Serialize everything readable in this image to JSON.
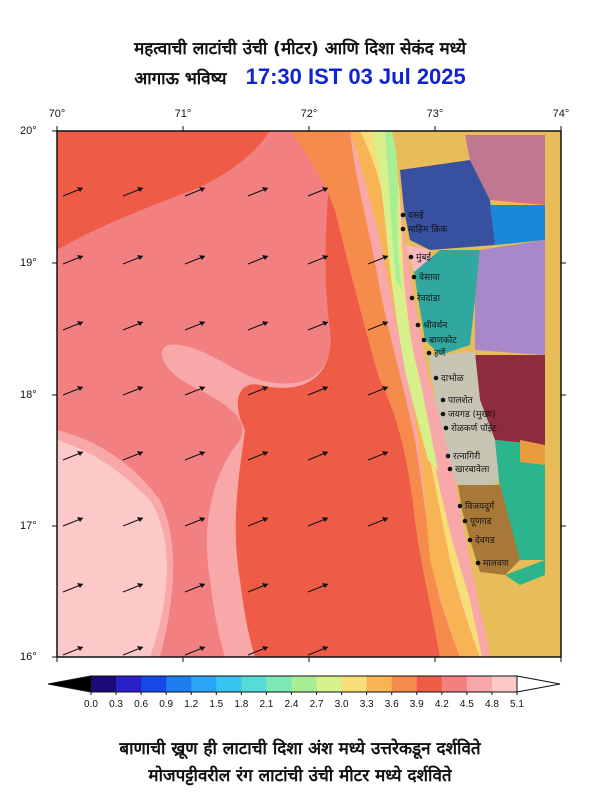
{
  "title": {
    "line1": "महत्वाची लाटांची उंची (मीटर) आणि दिशा सेकंद मध्ये",
    "line2_prefix": "आगाऊ भविष्य",
    "timestamp": "17:30 IST 03 Jul 2025"
  },
  "axes": {
    "lon_labels": [
      "70°",
      "71°",
      "72°",
      "73°",
      "74°"
    ],
    "lat_labels": [
      "20°",
      "19°",
      "18°",
      "17°",
      "16°"
    ]
  },
  "colorbar": {
    "ticks": [
      "0.0",
      "0.3",
      "0.6",
      "0.9",
      "1.2",
      "1.5",
      "1.8",
      "2.1",
      "2.4",
      "2.7",
      "3.0",
      "3.3",
      "3.6",
      "3.9",
      "4.2",
      "4.5",
      "4.8",
      "5.1"
    ],
    "colors": [
      "#1a0a7a",
      "#2a20c8",
      "#1848e8",
      "#1c7cf0",
      "#2aa4f4",
      "#36c4f0",
      "#56dcd8",
      "#7ce8b4",
      "#a8ee94",
      "#d8f08c",
      "#f6de78",
      "#f8b454",
      "#f68c4c",
      "#ee5c48",
      "#f28080",
      "#f8a8a8",
      "#fcc8c8",
      "#feeaea"
    ]
  },
  "towns": [
    "वसई",
    "माहिम क्रिक",
    "मुंबई",
    "वेसावा",
    "रेवदांडा",
    "श्रीवर्धन",
    "बाणकोट",
    "हर्णे",
    "दाभोळ",
    "पालशेत",
    "जयगड (मुख्य)",
    "रोळकर्ण पॉइंट",
    "रत्नागिरी",
    "खारबावेला",
    "विजयदुर्ग",
    "पूणगड",
    "देवगड",
    "मालवण"
  ],
  "footer": {
    "line1": "बाणाची ख्रूण ही लाटाची दिशा अंश मध्ये उत्तरेकडून दर्शविते",
    "line2": "मोजपट्टीवरील रंग लाटांची उंची मीटर मध्ये दर्शविते"
  },
  "map_colors": {
    "sea_pink_light": "#fcc8c8",
    "sea_pink": "#f8a8a8",
    "sea_rose": "#f28080",
    "sea_red": "#ee5c48",
    "sea_orange": "#f68c4c",
    "sea_orange_light": "#f8b454",
    "sea_yellow": "#f6de78",
    "sea_lime": "#d8f08c",
    "sea_green": "#a8ee94",
    "land": "#e8bc58"
  }
}
